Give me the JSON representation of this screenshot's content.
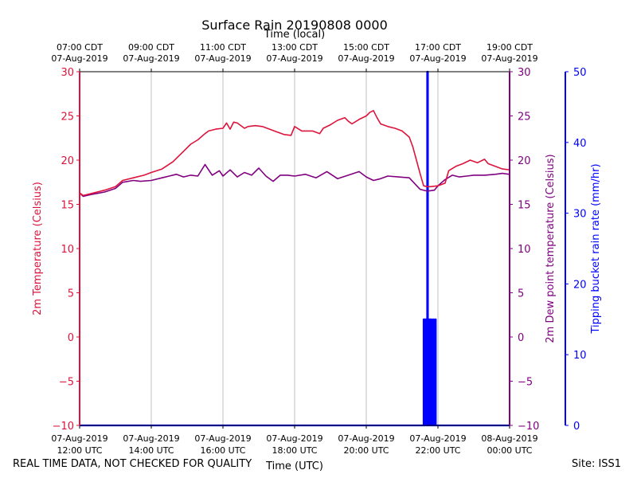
{
  "chart_data": {
    "type": "line",
    "title": "Surface Rain 20190808 0000",
    "top_axis_label": "Time (local)",
    "bottom_axis_label": "Time (UTC)",
    "footer_left": "REAL TIME DATA, NOT CHECKED FOR QUALITY",
    "footer_right": "Site: ISS1",
    "x_range_hours_utc": [
      12,
      24
    ],
    "x_ticks": [
      {
        "hour": 12,
        "utc": [
          "07-Aug-2019",
          "12:00 UTC"
        ],
        "local": [
          "07:00 CDT",
          "07-Aug-2019"
        ]
      },
      {
        "hour": 14,
        "utc": [
          "07-Aug-2019",
          "14:00 UTC"
        ],
        "local": [
          "09:00 CDT",
          "07-Aug-2019"
        ]
      },
      {
        "hour": 16,
        "utc": [
          "07-Aug-2019",
          "16:00 UTC"
        ],
        "local": [
          "11:00 CDT",
          "07-Aug-2019"
        ]
      },
      {
        "hour": 18,
        "utc": [
          "07-Aug-2019",
          "18:00 UTC"
        ],
        "local": [
          "13:00 CDT",
          "07-Aug-2019"
        ]
      },
      {
        "hour": 20,
        "utc": [
          "07-Aug-2019",
          "20:00 UTC"
        ],
        "local": [
          "15:00 CDT",
          "07-Aug-2019"
        ]
      },
      {
        "hour": 22,
        "utc": [
          "07-Aug-2019",
          "22:00 UTC"
        ],
        "local": [
          "17:00 CDT",
          "07-Aug-2019"
        ]
      },
      {
        "hour": 24,
        "utc": [
          "08-Aug-2019",
          "00:00 UTC"
        ],
        "local": [
          "19:00 CDT",
          "07-Aug-2019"
        ]
      }
    ],
    "y_left": {
      "label": "2m Temperature (Celsius)",
      "range": [
        -10,
        30
      ],
      "ticks": [
        -10,
        -5,
        0,
        5,
        10,
        15,
        20,
        25,
        30
      ],
      "color": "#dc143c"
    },
    "y_mid": {
      "label": "2m Dew point temperature (Celsius)",
      "range": [
        -10,
        30
      ],
      "ticks": [
        -10,
        -5,
        0,
        5,
        10,
        15,
        20,
        25,
        30
      ],
      "color": "#800080"
    },
    "y_right": {
      "label": "Tipping bucket rain rate (mm/hr)",
      "range": [
        0,
        50
      ],
      "ticks": [
        0,
        10,
        20,
        30,
        40,
        50
      ],
      "color": "#0000ff"
    },
    "series": [
      {
        "name": "2m Temperature",
        "color": "#dc143c",
        "x": [
          12.0,
          12.1,
          12.3,
          12.7,
          13.0,
          13.2,
          13.5,
          13.8,
          14.0,
          14.3,
          14.6,
          14.9,
          15.1,
          15.3,
          15.5,
          15.6,
          15.8,
          16.0,
          16.1,
          16.2,
          16.3,
          16.4,
          16.6,
          16.7,
          16.9,
          17.1,
          17.3,
          17.5,
          17.7,
          17.9,
          18.0,
          18.2,
          18.5,
          18.7,
          18.8,
          19.0,
          19.2,
          19.4,
          19.5,
          19.6,
          19.8,
          20.0,
          20.1,
          20.2,
          20.3,
          20.4,
          20.6,
          20.8,
          21.0,
          21.2,
          21.3,
          21.4,
          21.5,
          21.6,
          21.7,
          21.8,
          22.0,
          22.2,
          22.3,
          22.5,
          22.7,
          22.9,
          23.1,
          23.3,
          23.4,
          23.6,
          23.8,
          24.0
        ],
        "values": [
          16.3,
          16.0,
          16.2,
          16.6,
          17.0,
          17.7,
          18.0,
          18.3,
          18.6,
          19.0,
          19.8,
          21.0,
          21.8,
          22.3,
          23.0,
          23.3,
          23.5,
          23.6,
          24.2,
          23.5,
          24.3,
          24.2,
          23.6,
          23.8,
          23.9,
          23.8,
          23.5,
          23.2,
          22.9,
          22.8,
          23.8,
          23.3,
          23.3,
          23.0,
          23.6,
          24.0,
          24.5,
          24.8,
          24.4,
          24.1,
          24.6,
          25.0,
          25.4,
          25.6,
          24.8,
          24.1,
          23.8,
          23.6,
          23.3,
          22.6,
          21.5,
          20.0,
          18.5,
          17.1,
          17.0,
          17.0,
          17.1,
          17.4,
          18.8,
          19.3,
          19.6,
          20.0,
          19.7,
          20.1,
          19.6,
          19.3,
          19.0,
          18.9
        ]
      },
      {
        "name": "2m Dew point temperature",
        "color": "#800080",
        "x": [
          12.0,
          12.1,
          12.3,
          12.7,
          13.0,
          13.2,
          13.5,
          13.7,
          14.0,
          14.3,
          14.5,
          14.7,
          14.9,
          15.1,
          15.3,
          15.5,
          15.7,
          15.9,
          16.0,
          16.2,
          16.4,
          16.6,
          16.8,
          17.0,
          17.2,
          17.4,
          17.6,
          17.8,
          18.0,
          18.3,
          18.6,
          18.9,
          19.2,
          19.5,
          19.8,
          20.0,
          20.2,
          20.4,
          20.6,
          20.9,
          21.2,
          21.5,
          21.7,
          21.9,
          22.0,
          22.2,
          22.4,
          22.6,
          22.8,
          23.0,
          23.3,
          23.6,
          23.8,
          24.0
        ],
        "values": [
          16.3,
          15.9,
          16.1,
          16.4,
          16.8,
          17.5,
          17.7,
          17.6,
          17.7,
          18.0,
          18.2,
          18.4,
          18.1,
          18.3,
          18.2,
          19.5,
          18.3,
          18.8,
          18.2,
          18.9,
          18.1,
          18.6,
          18.3,
          19.1,
          18.2,
          17.6,
          18.3,
          18.3,
          18.2,
          18.4,
          18.0,
          18.7,
          17.9,
          18.3,
          18.7,
          18.1,
          17.7,
          17.9,
          18.2,
          18.1,
          18.0,
          16.7,
          16.5,
          16.6,
          17.1,
          17.8,
          18.3,
          18.1,
          18.2,
          18.3,
          18.3,
          18.4,
          18.5,
          18.4
        ]
      },
      {
        "name": "Tipping bucket rain rate",
        "color": "#0000ff",
        "x": [
          12.0,
          21.6,
          21.6,
          21.62,
          21.62,
          21.64,
          21.64,
          21.68,
          21.68,
          21.7,
          21.7,
          21.72,
          21.72,
          21.75,
          21.75,
          21.78,
          21.78,
          21.8,
          21.8,
          21.82,
          21.82,
          21.86,
          21.86,
          21.88,
          21.88,
          21.92,
          21.92,
          21.94,
          21.94,
          24.0
        ],
        "values": [
          0,
          0,
          15,
          15,
          0,
          0,
          15,
          15,
          0,
          0,
          50,
          50,
          0,
          0,
          15,
          15,
          0,
          0,
          15,
          15,
          0,
          0,
          15,
          15,
          0,
          0,
          15,
          15,
          0,
          0
        ]
      }
    ]
  }
}
